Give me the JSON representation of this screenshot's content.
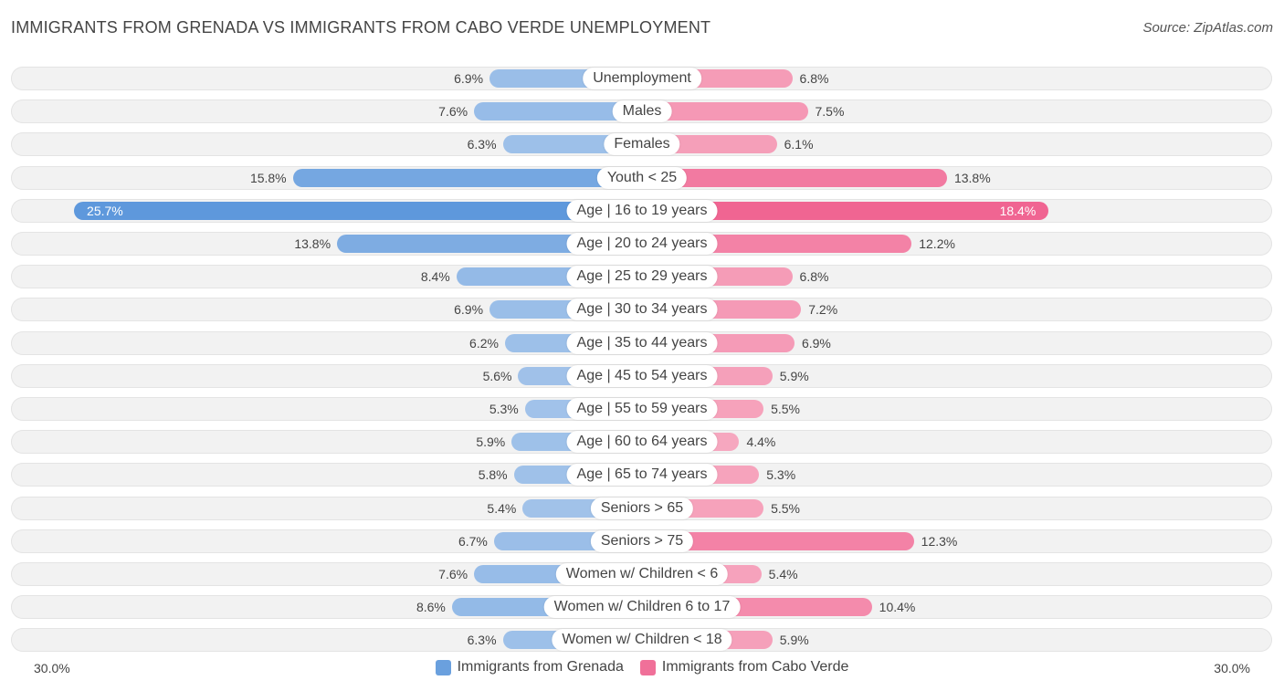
{
  "title": "IMMIGRANTS FROM GRENADA VS IMMIGRANTS FROM CABO VERDE UNEMPLOYMENT",
  "source": "Source: ZipAtlas.com",
  "colors": {
    "left": "#a8c6ea",
    "left_strong": "#6aa0de",
    "right": "#f5a9c0",
    "right_strong": "#f07099"
  },
  "axis": {
    "left_label": "30.0%",
    "right_label": "30.0%"
  },
  "legend": {
    "left": "Immigrants from Grenada",
    "right": "Immigrants from Cabo Verde"
  },
  "chart_data": {
    "type": "bar",
    "orientation": "horizontal-diverging",
    "title": "IMMIGRANTS FROM GRENADA VS IMMIGRANTS FROM CABO VERDE UNEMPLOYMENT",
    "xlim": [
      0,
      30
    ],
    "unit": "%",
    "categories": [
      "Unemployment",
      "Males",
      "Females",
      "Youth < 25",
      "Age | 16 to 19 years",
      "Age | 20 to 24 years",
      "Age | 25 to 29 years",
      "Age | 30 to 34 years",
      "Age | 35 to 44 years",
      "Age | 45 to 54 years",
      "Age | 55 to 59 years",
      "Age | 60 to 64 years",
      "Age | 65 to 74 years",
      "Seniors > 65",
      "Seniors > 75",
      "Women w/ Children < 6",
      "Women w/ Children 6 to 17",
      "Women w/ Children < 18"
    ],
    "series": [
      {
        "name": "Immigrants from Grenada",
        "values": [
          6.9,
          7.6,
          6.3,
          15.8,
          25.7,
          13.8,
          8.4,
          6.9,
          6.2,
          5.6,
          5.3,
          5.9,
          5.8,
          5.4,
          6.7,
          7.6,
          8.6,
          6.3
        ],
        "labels": [
          "6.9%",
          "7.6%",
          "6.3%",
          "15.8%",
          "25.7%",
          "13.8%",
          "8.4%",
          "6.9%",
          "6.2%",
          "5.6%",
          "5.3%",
          "5.9%",
          "5.8%",
          "5.4%",
          "6.7%",
          "7.6%",
          "8.6%",
          "6.3%"
        ]
      },
      {
        "name": "Immigrants from Cabo Verde",
        "values": [
          6.8,
          7.5,
          6.1,
          13.8,
          18.4,
          12.2,
          6.8,
          7.2,
          6.9,
          5.9,
          5.5,
          4.4,
          5.3,
          5.5,
          12.3,
          5.4,
          10.4,
          5.9
        ],
        "labels": [
          "6.8%",
          "7.5%",
          "6.1%",
          "13.8%",
          "18.4%",
          "12.2%",
          "6.8%",
          "7.2%",
          "6.9%",
          "5.9%",
          "5.5%",
          "4.4%",
          "5.3%",
          "5.5%",
          "12.3%",
          "5.4%",
          "10.4%",
          "5.9%"
        ]
      }
    ]
  }
}
